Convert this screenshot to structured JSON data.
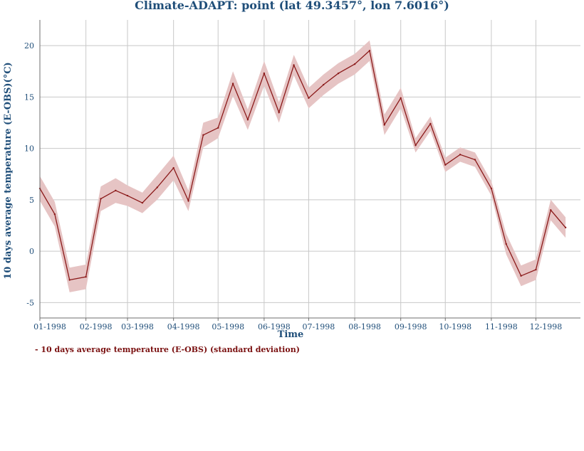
{
  "chart_data": {
    "type": "line",
    "title": "Climate-ADAPT: point (lat 49.3457°, lon 7.6016°)",
    "xlabel": "Time",
    "ylabel": "10 days average temperature (E-OBS)(°C)",
    "ylim": [
      -6.5,
      22.5
    ],
    "yticks": [
      -5,
      0,
      5,
      10,
      15,
      20
    ],
    "xlim": [
      "1998-01-01",
      "1998-12-31"
    ],
    "xticks": [
      {
        "date": "1998-01-01",
        "label": "01-1998"
      },
      {
        "date": "1998-02-01",
        "label": "02-1998"
      },
      {
        "date": "1998-03-01",
        "label": "03-1998"
      },
      {
        "date": "1998-04-01",
        "label": "04-1998"
      },
      {
        "date": "1998-05-01",
        "label": "05-1998"
      },
      {
        "date": "1998-06-01",
        "label": "06-1998"
      },
      {
        "date": "1998-07-01",
        "label": "07-1998"
      },
      {
        "date": "1998-08-01",
        "label": "08-1998"
      },
      {
        "date": "1998-09-01",
        "label": "09-1998"
      },
      {
        "date": "1998-10-01",
        "label": "10-1998"
      },
      {
        "date": "1998-11-01",
        "label": "11-1998"
      },
      {
        "date": "1998-12-01",
        "label": "12-1998"
      }
    ],
    "grid": true,
    "legend_position": "bottom-left",
    "series": [
      {
        "name": "- 10 days average temperature (E-OBS) (standard deviation)",
        "color": "#8b1a1a",
        "band_color": "#e6c4c4",
        "x": [
          "1998-01-01",
          "1998-01-11",
          "1998-01-21",
          "1998-02-01",
          "1998-02-11",
          "1998-02-21",
          "1998-03-01",
          "1998-03-11",
          "1998-03-21",
          "1998-04-01",
          "1998-04-11",
          "1998-04-21",
          "1998-05-01",
          "1998-05-11",
          "1998-05-21",
          "1998-06-01",
          "1998-06-11",
          "1998-06-21",
          "1998-07-01",
          "1998-07-11",
          "1998-07-21",
          "1998-08-01",
          "1998-08-11",
          "1998-08-21",
          "1998-09-01",
          "1998-09-11",
          "1998-09-21",
          "1998-10-01",
          "1998-10-11",
          "1998-10-21",
          "1998-11-01",
          "1998-11-11",
          "1998-11-21",
          "1998-12-01",
          "1998-12-11",
          "1998-12-21"
        ],
        "y": [
          6.1,
          3.6,
          -2.8,
          -2.5,
          5.1,
          5.9,
          5.4,
          4.7,
          6.2,
          8.1,
          4.9,
          11.3,
          12.0,
          16.3,
          12.8,
          17.3,
          13.5,
          18.1,
          14.9,
          16.2,
          17.3,
          18.2,
          19.5,
          12.3,
          14.9,
          10.3,
          12.4,
          8.4,
          9.4,
          8.9,
          6.1,
          0.7,
          -2.4,
          -1.8,
          4.0,
          2.3
        ],
        "lower": [
          4.9,
          2.4,
          -4.0,
          -3.7,
          3.9,
          4.7,
          4.4,
          3.7,
          5.0,
          6.9,
          3.9,
          10.1,
          11.0,
          15.1,
          11.8,
          16.1,
          12.5,
          17.1,
          13.9,
          15.2,
          16.3,
          17.2,
          18.5,
          11.3,
          13.9,
          9.6,
          11.7,
          7.7,
          8.7,
          8.2,
          5.4,
          -0.3,
          -3.4,
          -2.8,
          3.0,
          1.3
        ],
        "upper": [
          7.3,
          4.8,
          -1.6,
          -1.3,
          6.3,
          7.1,
          6.4,
          5.7,
          7.4,
          9.3,
          5.9,
          12.5,
          13.0,
          17.5,
          13.8,
          18.5,
          14.5,
          19.1,
          15.9,
          17.2,
          18.3,
          19.2,
          20.5,
          13.3,
          15.9,
          11.0,
          13.1,
          9.1,
          10.1,
          9.6,
          6.8,
          1.7,
          -1.4,
          -0.8,
          5.0,
          3.3
        ]
      }
    ]
  }
}
